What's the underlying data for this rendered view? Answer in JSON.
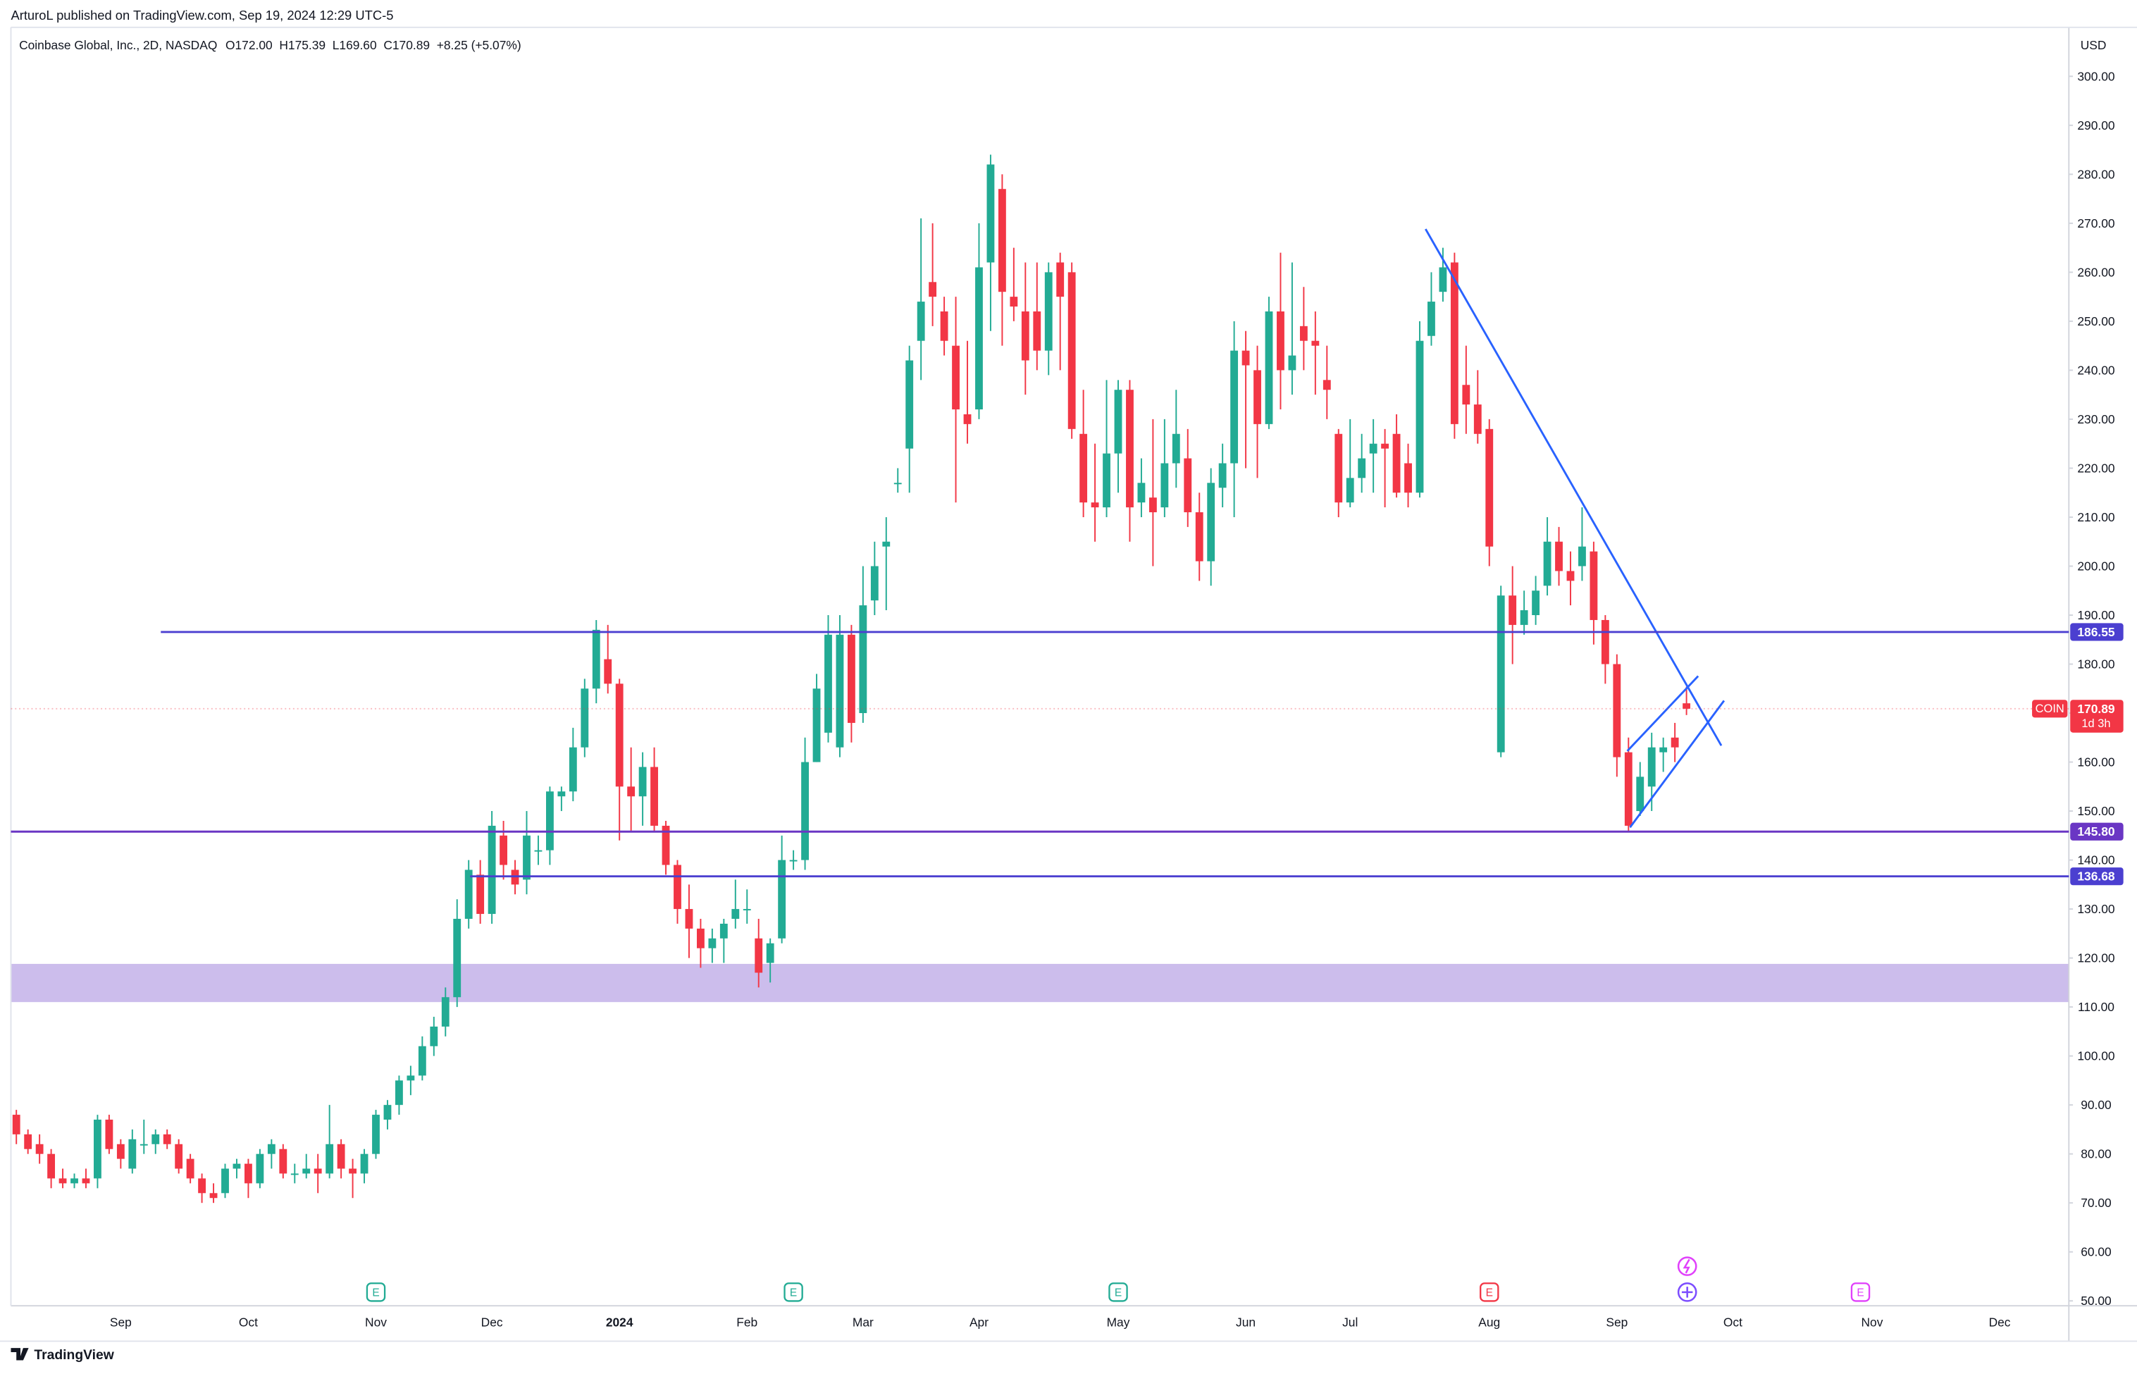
{
  "chart_data": {
    "type": "candlestick",
    "header": "ArturoL published on TradingView.com, Sep 19, 2024 12:29 UTC-5",
    "symbol_info": "Coinbase Global, Inc., 2D, NASDAQ",
    "quote": [
      "O172.00",
      "H175.39",
      "L169.60",
      "C170.89",
      "+8.25 (+5.07%)"
    ],
    "currency": "USD",
    "footer": "TradingView",
    "up_color": "#22ab94",
    "down_color": "#f23645",
    "categories": [
      null,
      null,
      null,
      null,
      null,
      null,
      null,
      null,
      null,
      "Sep",
      null,
      null,
      null,
      null,
      null,
      null,
      null,
      null,
      null,
      null,
      "Oct",
      null,
      null,
      null,
      null,
      null,
      null,
      null,
      null,
      null,
      null,
      "Nov",
      null,
      null,
      null,
      null,
      null,
      null,
      null,
      null,
      null,
      "Dec",
      null,
      null,
      null,
      null,
      null,
      null,
      null,
      null,
      null,
      null,
      "2024",
      null,
      null,
      null,
      null,
      null,
      null,
      null,
      null,
      null,
      null,
      "Feb",
      null,
      null,
      null,
      null,
      null,
      null,
      null,
      null,
      null,
      "Mar",
      null,
      null,
      null,
      null,
      null,
      null,
      null,
      null,
      null,
      "Apr",
      null,
      null,
      null,
      null,
      null,
      null,
      null,
      null,
      null,
      null,
      null,
      "May",
      null,
      null,
      null,
      null,
      null,
      null,
      null,
      null,
      null,
      null,
      "Jun",
      null,
      null,
      null,
      null,
      null,
      null,
      null,
      null,
      "Jul",
      null,
      null,
      null,
      null,
      null,
      null,
      null,
      null,
      null,
      null,
      null,
      "Aug",
      null,
      null,
      null,
      null,
      null,
      null,
      null,
      null,
      null,
      null,
      "Sep",
      null,
      null,
      null,
      null,
      null,
      null,
      null,
      null,
      null,
      "Oct",
      null,
      null,
      null,
      null,
      null,
      null,
      null,
      null,
      null,
      null,
      null,
      "Nov",
      null,
      null,
      null,
      null,
      null,
      null,
      null,
      null,
      null,
      null,
      "Dec",
      null,
      null,
      null,
      null,
      null
    ],
    "open": [
      88,
      84,
      82,
      80,
      75,
      74,
      75,
      75,
      87,
      82,
      77,
      82,
      82,
      84,
      82,
      79,
      75,
      72,
      72,
      77,
      78,
      74,
      80,
      81,
      76,
      76,
      77,
      76,
      82,
      77,
      76,
      80,
      87,
      90,
      95,
      96,
      102,
      106,
      112,
      128,
      137,
      129,
      145,
      138,
      136,
      142,
      142,
      153,
      154,
      163,
      175,
      181,
      176,
      155,
      153,
      159,
      147,
      139,
      130,
      126,
      122,
      124,
      128,
      130,
      124,
      119,
      124,
      140,
      140,
      160,
      166,
      163,
      186,
      170,
      193,
      204,
      217,
      224,
      246,
      258,
      252,
      245,
      231,
      232,
      262,
      277,
      255,
      252,
      252,
      244,
      262,
      260,
      227,
      213,
      212,
      223,
      236,
      213,
      214,
      212,
      221,
      222,
      211,
      201,
      216,
      221,
      244,
      240,
      229,
      252,
      240,
      249,
      246,
      238,
      227,
      213,
      218,
      223,
      225,
      227,
      221,
      215,
      247,
      256,
      262,
      237,
      233,
      228,
      162,
      194,
      188,
      190,
      196,
      205,
      199,
      200,
      203,
      189,
      180,
      162,
      150,
      155,
      162,
      165,
      172,
      null,
      null,
      null,
      null,
      null,
      null,
      null,
      null,
      null,
      null,
      null,
      null,
      null,
      null,
      null,
      null,
      null,
      null,
      null,
      null,
      null,
      null,
      null,
      null,
      null,
      null,
      null,
      null,
      null,
      null,
      null,
      null
    ],
    "high": [
      89,
      85,
      84,
      81,
      77,
      76,
      77,
      88,
      88,
      83,
      85,
      87,
      85,
      85,
      83,
      80,
      76,
      74,
      78,
      79,
      79,
      81,
      83,
      82,
      78,
      80,
      80,
      90,
      83,
      79,
      81,
      89,
      91,
      96,
      98,
      104,
      108,
      114,
      132,
      140,
      140,
      150,
      148,
      140,
      150,
      145,
      155,
      155,
      167,
      177,
      189,
      188,
      177,
      163,
      162,
      163,
      148,
      140,
      135,
      128,
      126,
      128,
      136,
      134,
      128,
      124,
      145,
      142,
      165,
      178,
      190,
      190,
      188,
      200,
      205,
      210,
      220,
      245,
      271,
      270,
      255,
      255,
      246,
      270,
      284,
      280,
      265,
      262,
      262,
      262,
      264,
      262,
      236,
      225,
      238,
      238,
      238,
      222,
      230,
      230,
      236,
      228,
      215,
      220,
      225,
      250,
      248,
      245,
      255,
      264,
      262,
      257,
      252,
      245,
      228,
      230,
      227,
      230,
      228,
      231,
      225,
      250,
      260,
      265,
      264,
      245,
      240,
      230,
      196,
      200,
      195,
      198,
      210,
      208,
      203,
      212,
      205,
      190,
      182,
      165,
      160,
      166,
      165,
      168,
      175.39,
      null,
      null,
      null,
      null,
      null,
      null,
      null,
      null,
      null,
      null,
      null,
      null,
      null,
      null,
      null,
      null,
      null,
      null,
      null,
      null,
      null,
      null,
      null,
      null,
      null,
      null,
      null,
      null,
      null,
      null,
      null,
      null
    ],
    "low": [
      82,
      80,
      78,
      73,
      73,
      73,
      73,
      73,
      80,
      77,
      76,
      80,
      80,
      81,
      76,
      74,
      70,
      70,
      71,
      75,
      71,
      73,
      77,
      75,
      74,
      75,
      72,
      75,
      75,
      71,
      74,
      79,
      85,
      88,
      92,
      95,
      100,
      104,
      110,
      126,
      127,
      127,
      136,
      133,
      133,
      139,
      139,
      150,
      152,
      161,
      172,
      174,
      144,
      146,
      147,
      146,
      137,
      127,
      120,
      118,
      119,
      119,
      126,
      127,
      114,
      115,
      123,
      138,
      138,
      160,
      164,
      161,
      164,
      168,
      190,
      191,
      215,
      215,
      238,
      249,
      243,
      213,
      225,
      230,
      248,
      245,
      250,
      235,
      240,
      239,
      240,
      226,
      210,
      205,
      210,
      215,
      205,
      210,
      200,
      210,
      216,
      208,
      197,
      196,
      212,
      210,
      220,
      218,
      228,
      232,
      235,
      240,
      235,
      230,
      210,
      212,
      215,
      215,
      212,
      214,
      212,
      214,
      245,
      254,
      226,
      227,
      225,
      200,
      161,
      180,
      186,
      188,
      194,
      196,
      192,
      197,
      184,
      176,
      157,
      146,
      149,
      150,
      158,
      160,
      169.6,
      null,
      null,
      null,
      null,
      null,
      null,
      null,
      null,
      null,
      null,
      null,
      null,
      null,
      null,
      null,
      null,
      null,
      null,
      null,
      null,
      null,
      null,
      null,
      null,
      null,
      null,
      null,
      null,
      null,
      null,
      null,
      null
    ],
    "close": [
      84,
      81,
      80,
      75,
      74,
      75,
      74,
      87,
      81,
      79,
      83,
      82,
      84,
      82,
      77,
      75,
      72,
      71,
      77,
      78,
      74,
      80,
      82,
      76,
      76,
      77,
      76,
      82,
      77,
      76,
      80,
      88,
      90,
      95,
      96,
      102,
      106,
      112,
      128,
      138,
      129,
      147,
      139,
      135,
      145,
      142,
      154,
      154,
      163,
      175,
      187,
      176,
      155,
      153,
      159,
      147,
      139,
      130,
      126,
      122,
      124,
      127,
      130,
      130,
      117,
      123,
      140,
      140,
      160,
      175,
      186,
      186,
      168,
      192,
      200,
      205,
      217,
      242,
      254,
      255,
      246,
      232,
      229,
      261,
      282,
      256,
      253,
      242,
      244,
      260,
      255,
      228,
      213,
      212,
      223,
      236,
      212,
      217,
      211,
      221,
      227,
      211,
      201,
      217,
      221,
      244,
      241,
      229,
      252,
      240,
      243,
      246,
      245,
      236,
      213,
      218,
      222,
      225,
      224,
      215,
      215,
      246,
      254,
      261,
      229,
      233,
      227,
      204,
      194,
      188,
      191,
      195,
      205,
      199,
      197,
      204,
      189,
      180,
      161,
      147,
      157,
      163,
      163,
      163,
      170.89,
      null,
      null,
      null,
      null,
      null,
      null,
      null,
      null,
      null,
      null,
      null,
      null,
      null,
      null,
      null,
      null,
      null,
      null,
      null,
      null,
      null,
      null,
      null,
      null,
      null,
      null,
      null,
      null,
      null,
      null,
      null,
      null
    ],
    "ylim": [
      49,
      310
    ],
    "yticks": [
      {
        "value": 50,
        "label": "50.00"
      },
      {
        "value": 60,
        "label": "60.00"
      },
      {
        "value": 70,
        "label": "70.00"
      },
      {
        "value": 80,
        "label": "80.00"
      },
      {
        "value": 90,
        "label": "90.00"
      },
      {
        "value": 100,
        "label": "100.00"
      },
      {
        "value": 110,
        "label": "110.00"
      },
      {
        "value": 120,
        "label": "120.00"
      },
      {
        "value": 130,
        "label": "130.00"
      },
      {
        "value": 140,
        "label": "140.00"
      },
      {
        "value": 150,
        "label": "150.00"
      },
      {
        "value": 160,
        "label": "160.00"
      },
      {
        "value": 170,
        "label": "170.00"
      },
      {
        "value": 180,
        "label": "180.00"
      },
      {
        "value": 190,
        "label": "190.00"
      },
      {
        "value": 200,
        "label": "200.00"
      },
      {
        "value": 210,
        "label": "210.00"
      },
      {
        "value": 220,
        "label": "220.00"
      },
      {
        "value": 230,
        "label": "230.00"
      },
      {
        "value": 240,
        "label": "240.00"
      },
      {
        "value": 250,
        "label": "250.00"
      },
      {
        "value": 260,
        "label": "260.00"
      },
      {
        "value": 270,
        "label": "270.00"
      },
      {
        "value": 280,
        "label": "280.00"
      },
      {
        "value": 290,
        "label": "290.00"
      },
      {
        "value": 300,
        "label": "300.00"
      }
    ],
    "levels": [
      {
        "value": 186.55,
        "color": "#4b3fd0"
      },
      {
        "value": 145.8,
        "label": "145.80",
        "color": "#6a36c4"
      },
      {
        "value": 136.68,
        "color": "#4b3fd0"
      }
    ],
    "zone": {
      "from": 111,
      "to": 118.8,
      "color": "#c7b6ea"
    },
    "last_price": {
      "symbol": "COIN",
      "value": 170.89,
      "countdown": "1d 3h",
      "color": "#f23645"
    },
    "events": [
      {
        "label": "E",
        "color": "#22ab94"
      },
      {
        "label": "E",
        "color": "#22ab94"
      },
      {
        "label": "E",
        "color": "#22ab94"
      },
      {
        "label": "E",
        "color": "#f23645"
      },
      {
        "label": "E",
        "color": "#e040fb"
      }
    ]
  }
}
